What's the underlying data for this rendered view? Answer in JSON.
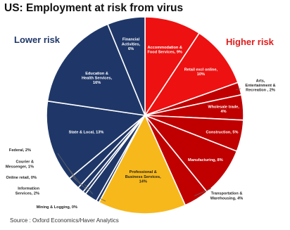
{
  "header": {
    "title": "US: Employment at risk from virus",
    "lower_risk_label": "Lower risk",
    "higher_risk_label": "Higher risk",
    "source": "Source : Oxford Economics/Haver Analytics"
  },
  "colors": {
    "navy": "#1f3768",
    "red": "#ee1111",
    "dark_red": "#c00000",
    "gold": "#f7b81b",
    "lower_risk_text": "#1f3768",
    "higher_risk_text": "#e01b1b"
  },
  "chart_data": {
    "type": "pie",
    "unit": "%",
    "slices": [
      {
        "label": [
          "Accommodation &",
          "Food Services, 9%"
        ],
        "value": 9,
        "color": "red"
      },
      {
        "label": [
          "Retail excl online,",
          "10%"
        ],
        "value": 10,
        "color": "red"
      },
      {
        "label": [
          "Arts,",
          "Entertainment &",
          "Recreation , 2%"
        ],
        "value": 2,
        "color": "dark_red"
      },
      {
        "label": [
          "Wholesale trade,",
          "4%"
        ],
        "value": 4,
        "color": "dark_red"
      },
      {
        "label": [
          "Construction, 5%"
        ],
        "value": 5,
        "color": "dark_red"
      },
      {
        "label": [
          "Manufacturing, 8%"
        ],
        "value": 8,
        "color": "dark_red"
      },
      {
        "label": [
          "Transportation &",
          "Warehousing, 4%"
        ],
        "value": 4,
        "color": "dark_red"
      },
      {
        "label": [
          "Professional &",
          "Business Services,",
          "14%"
        ],
        "value": 14,
        "color": "gold"
      },
      {
        "label": [
          "Mining & Logging, 0%"
        ],
        "value": 0.5,
        "color": "navy"
      },
      {
        "label": [
          "Information",
          "Services, 2%"
        ],
        "value": 2,
        "color": "navy"
      },
      {
        "label": [
          "Online retail, 0%"
        ],
        "value": 0.5,
        "color": "navy"
      },
      {
        "label": [
          "Courier &",
          "Messenger, 1%"
        ],
        "value": 1,
        "color": "navy"
      },
      {
        "label": [
          "Federal, 2%"
        ],
        "value": 2,
        "color": "navy"
      },
      {
        "label": [
          "State & Local, 13%"
        ],
        "value": 13,
        "color": "navy"
      },
      {
        "label": [
          "Education &",
          "Health Services,",
          "16%"
        ],
        "value": 16,
        "color": "navy"
      },
      {
        "label": [
          "Financial",
          "Activities,",
          "6%"
        ],
        "value": 6,
        "color": "navy"
      }
    ]
  }
}
